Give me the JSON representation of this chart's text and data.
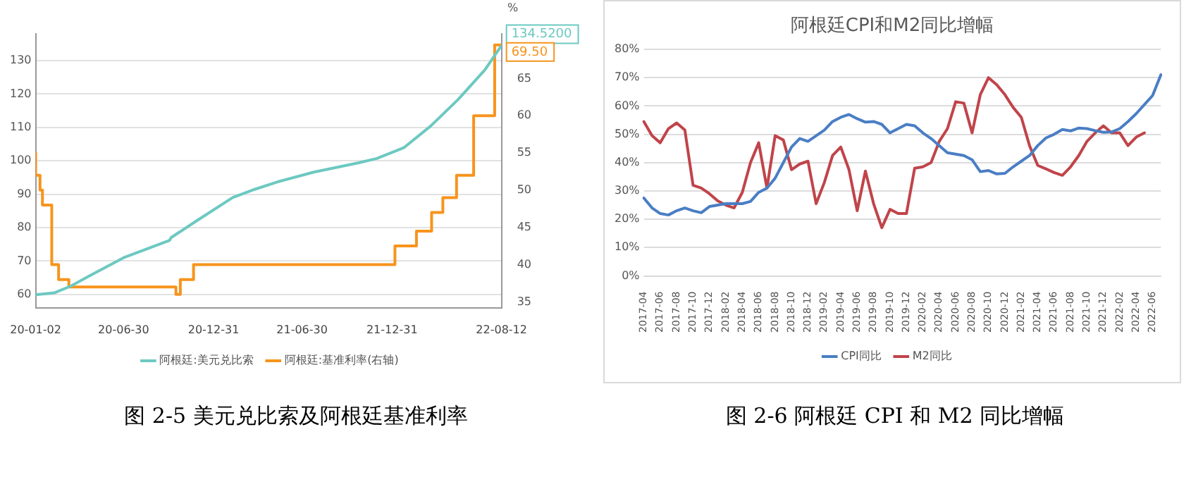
{
  "chart_data": [
    {
      "type": "line",
      "legend": "bottom",
      "grid": "y",
      "marker": "none",
      "y2label": "%",
      "annotations": [
        "图 2-5 美元兑比索及阿根廷基准利率"
      ],
      "xlim": [
        "2020-01-02",
        "2022-08-12"
      ],
      "xticks": [
        {
          "value": "2020-01-02",
          "label": "20-01-02"
        },
        {
          "value": "2020-06-30",
          "label": "20-06-30"
        },
        {
          "value": "2020-12-31",
          "label": "20-12-31"
        },
        {
          "value": "2021-06-30",
          "label": "21-06-30"
        },
        {
          "value": "2021-12-31",
          "label": "21-12-31"
        },
        {
          "value": "2022-08-12",
          "label": "22-08-12"
        }
      ],
      "ylim": [
        56,
        138
      ],
      "yticks": [
        60,
        70,
        80,
        90,
        100,
        110,
        120,
        130
      ],
      "y2lim": [
        34.2,
        71
      ],
      "y2ticks": [
        35,
        40,
        45,
        50,
        55,
        60,
        65
      ],
      "series": [
        {
          "name": "阿根廷:美元兑比索",
          "color": "#6cc9c1",
          "x": [
            "2020-01-02",
            "2020-02-10",
            "2020-03-14",
            "2020-04-19",
            "2020-06-30",
            "2020-10-02",
            "2020-10-05",
            "2020-11-26",
            "2021-02-08",
            "2021-03-26",
            "2021-05-11",
            "2021-07-24",
            "2021-10-24",
            "2021-11-30",
            "2022-01-24",
            "2022-03-20",
            "2022-05-15",
            "2022-07-09",
            "2022-08-12"
          ],
          "values": [
            59.9,
            60.5,
            62.5,
            65.4,
            71,
            76.2,
            77,
            82,
            89,
            91.5,
            93.7,
            96.6,
            99.4,
            100.7,
            103.9,
            110.4,
            118.3,
            127.2,
            134.52
          ],
          "value_labels": [
            null,
            null,
            null,
            null,
            null,
            null,
            null,
            null,
            null,
            null,
            null,
            null,
            null,
            null,
            null,
            null,
            null,
            null,
            "134.5200"
          ]
        },
        {
          "name": "阿根廷:基准利率(右轴)",
          "type": "step",
          "axis": "y2",
          "color": "#f7941d",
          "x": [
            "2020-01-02",
            "2020-01-11",
            "2020-01-16",
            "2020-02-04",
            "2020-02-18",
            "2020-03-10",
            "2020-10-15",
            "2020-10-24",
            "2020-11-20",
            "2022-01-06",
            "2022-02-19",
            "2022-03-22",
            "2022-04-14",
            "2022-05-12",
            "2022-06-16",
            "2022-07-29",
            "2022-08-12"
          ],
          "values": [
            55,
            52,
            50,
            48,
            40,
            38,
            37,
            36,
            38,
            40,
            42.5,
            44.5,
            47,
            49,
            52,
            60,
            69.5
          ],
          "value_labels": [
            null,
            null,
            null,
            null,
            null,
            null,
            null,
            null,
            null,
            null,
            null,
            null,
            null,
            null,
            null,
            null,
            "69.50"
          ]
        }
      ]
    },
    {
      "type": "line",
      "title": "阿根廷CPI和M2同比增幅",
      "legend": "bottom",
      "grid": "y",
      "marker": "none",
      "annotations": [
        "图 2-6 阿根廷 CPI 和 M2 同比增幅"
      ],
      "categories": [
        "2017-04",
        null,
        "2017-06",
        null,
        "2017-08",
        null,
        "2017-10",
        null,
        "2017-12",
        null,
        "2018-02",
        null,
        "2018-04",
        null,
        "2018-06",
        null,
        "2018-08",
        null,
        "2018-10",
        null,
        "2018-12",
        null,
        "2019-02",
        null,
        "2019-04",
        null,
        "2019-06",
        null,
        "2019-08",
        null,
        "2019-10",
        null,
        "2019-12",
        null,
        "2020-02",
        null,
        "2020-04",
        null,
        "2020-06",
        null,
        "2020-08",
        null,
        "2020-10",
        null,
        "2020-12",
        null,
        "2021-02",
        null,
        "2021-04",
        null,
        "2021-06",
        null,
        "2021-08",
        null,
        "2021-10",
        null,
        "2021-12",
        null,
        "2022-02",
        null,
        "2022-04",
        null,
        "2022-06",
        null
      ],
      "ylim": [
        0,
        80
      ],
      "yticks": [
        {
          "value": 0,
          "label": "0%"
        },
        {
          "value": 10,
          "label": "10%"
        },
        {
          "value": 20,
          "label": "20%"
        },
        {
          "value": 30,
          "label": "30%"
        },
        {
          "value": 40,
          "label": "40%"
        },
        {
          "value": 50,
          "label": "50%"
        },
        {
          "value": 60,
          "label": "60%"
        },
        {
          "value": 70,
          "label": "70%"
        },
        {
          "value": 80,
          "label": "80%"
        }
      ],
      "series": [
        {
          "name": "CPI同比",
          "color": "#4a7ec5",
          "values": [
            27.5,
            24,
            22,
            21.5,
            23,
            24,
            23,
            22.3,
            24.5,
            25,
            25.5,
            25.5,
            25.5,
            26.3,
            29.5,
            31,
            34.5,
            40,
            45.5,
            48.5,
            47.5,
            49.5,
            51.5,
            54.5,
            56,
            57,
            55.5,
            54.3,
            54.5,
            53.5,
            50.5,
            52,
            53.5,
            53,
            50.5,
            48.5,
            46,
            43.5,
            43,
            42.5,
            41,
            36.8,
            37.2,
            36,
            36.2,
            38.5,
            40.5,
            42.5,
            46,
            48.7,
            50,
            51.7,
            51.2,
            52.2,
            52,
            51.3,
            50.7,
            50.8,
            52,
            54.5,
            57.3,
            60.5,
            63.7,
            71
          ]
        },
        {
          "name": "M2同比",
          "color": "#c0444a",
          "values": [
            54.5,
            49.5,
            47,
            52,
            54,
            51.5,
            32,
            31,
            29,
            26.5,
            25,
            24,
            29.5,
            40,
            47,
            31,
            49.5,
            48,
            37.5,
            39.5,
            40.5,
            25.5,
            33,
            42.5,
            45.5,
            37.5,
            23,
            37,
            25.5,
            17,
            23.5,
            22,
            22,
            38,
            38.5,
            40,
            47.5,
            52,
            61.5,
            61,
            50.5,
            64,
            70,
            67.5,
            64,
            59.5,
            56,
            46,
            39,
            37.8,
            36.5,
            35.5,
            38.5,
            42.5,
            47.5,
            50.5,
            53,
            50.5,
            50.5,
            46,
            49,
            50.5,
            null,
            null
          ]
        }
      ]
    }
  ]
}
